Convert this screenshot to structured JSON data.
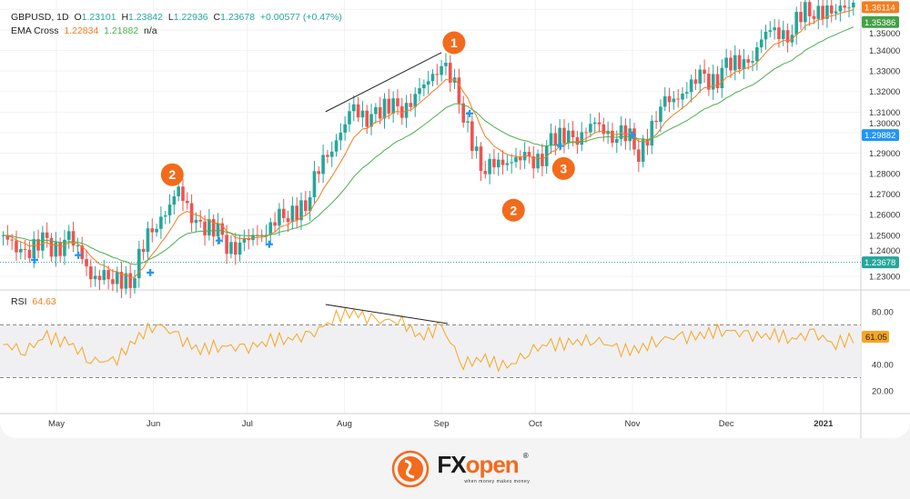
{
  "legend": {
    "symbol": "GBPUSD, 1D",
    "o_label": "O",
    "o": "1.23101",
    "h_label": "H",
    "h": "1.23842",
    "l_label": "L",
    "l": "1.22936",
    "c_label": "C",
    "c": "1.23678",
    "change": "+0.00577 (+0.47%)",
    "ema_label": "EMA Cross",
    "ema_fast": "1.22834",
    "ema_slow": "1.21882",
    "ema_na": "n/a",
    "rsi_label": "RSI",
    "rsi_value": "64.63"
  },
  "colors": {
    "up": "#26a69a",
    "down": "#ef5350",
    "ema_fast": "#f57c1f",
    "ema_slow": "#4caf50",
    "rsi": "#f5a623",
    "cross": "#2196f3",
    "marker": "#f26b1d"
  },
  "chart_data": [
    {
      "type": "candlestick",
      "title": "GBPUSD, 1D",
      "ylim": [
        1.2215,
        1.3645
      ],
      "y_ticks": [
        "1.23000",
        "1.24000",
        "1.25000",
        "1.26000",
        "1.27000",
        "1.28000",
        "1.29000",
        "1.30000",
        "1.31000",
        "1.32000",
        "1.33000",
        "1.34000",
        "1.35000"
      ],
      "x_ticks": [
        {
          "date": "2020-05-01",
          "label": "May"
        },
        {
          "date": "2020-06-01",
          "label": "Jun"
        },
        {
          "date": "2020-07-01",
          "label": "Jul"
        },
        {
          "date": "2020-08-01",
          "label": "Aug"
        },
        {
          "date": "2020-09-01",
          "label": "Sep"
        },
        {
          "date": "2020-10-01",
          "label": "Oct"
        },
        {
          "date": "2020-11-01",
          "label": "Nov"
        },
        {
          "date": "2020-12-01",
          "label": "Dec"
        },
        {
          "date": "2021-01-01",
          "label": "2021"
        }
      ],
      "weekly_close": {
        "dates": [
          "2020-04-14",
          "2020-04-21",
          "2020-04-28",
          "2020-05-05",
          "2020-05-12",
          "2020-05-19",
          "2020-05-26",
          "2020-06-02",
          "2020-06-09",
          "2020-06-16",
          "2020-06-23",
          "2020-06-30",
          "2020-07-07",
          "2020-07-14",
          "2020-07-21",
          "2020-07-28",
          "2020-08-04",
          "2020-08-11",
          "2020-08-18",
          "2020-08-25",
          "2020-09-01",
          "2020-09-08",
          "2020-09-15",
          "2020-09-22",
          "2020-09-29",
          "2020-10-06",
          "2020-10-13",
          "2020-10-20",
          "2020-10-27",
          "2020-11-03",
          "2020-11-10",
          "2020-11-17",
          "2020-11-24",
          "2020-12-01",
          "2020-12-08",
          "2020-12-15",
          "2020-12-22",
          "2020-12-29",
          "2021-01-05",
          "2021-01-12"
        ],
        "values": [
          1.247,
          1.242,
          1.245,
          1.247,
          1.232,
          1.228,
          1.232,
          1.258,
          1.27,
          1.254,
          1.248,
          1.244,
          1.254,
          1.26,
          1.27,
          1.295,
          1.31,
          1.308,
          1.312,
          1.318,
          1.336,
          1.31,
          1.28,
          1.288,
          1.285,
          1.294,
          1.298,
          1.303,
          1.3,
          1.292,
          1.312,
          1.32,
          1.326,
          1.33,
          1.335,
          1.35,
          1.35,
          1.362,
          1.358,
          1.367
        ]
      },
      "price_tags": [
        {
          "value": "1.36114",
          "color": "#f57c1f",
          "price": 1.36114
        },
        {
          "value": "1.35386",
          "color": "#43a047",
          "price": 1.35386
        },
        {
          "value": "1.29882",
          "color": "#2196f3",
          "price": 1.29882
        },
        {
          "value": "1.23678",
          "color": "#26a69a",
          "price": 1.23678
        }
      ],
      "trendline": [
        {
          "date": "2020-07-26",
          "price": 1.3102
        },
        {
          "date": "2020-09-01",
          "price": 1.339
        }
      ],
      "crosses": [
        {
          "date": "2020-04-24",
          "price": 1.238
        },
        {
          "date": "2020-05-08",
          "price": 1.2403
        },
        {
          "date": "2020-05-31",
          "price": 1.2318
        },
        {
          "date": "2020-06-22",
          "price": 1.2474
        },
        {
          "date": "2020-07-08",
          "price": 1.2456
        },
        {
          "date": "2020-09-10",
          "price": 1.3093
        },
        {
          "date": "2020-10-09",
          "price": 1.2935
        },
        {
          "date": "2020-11-01",
          "price": 1.2988
        }
      ],
      "markers": [
        {
          "label": "1",
          "date": "2020-09-05",
          "price": 1.3438
        },
        {
          "label": "2",
          "date": "2020-06-07",
          "price": 1.2795
        },
        {
          "label": "2",
          "date": "2020-09-24",
          "price": 1.2622
        },
        {
          "label": "3",
          "date": "2020-10-10",
          "price": 1.2825
        }
      ]
    },
    {
      "type": "line",
      "title": "RSI",
      "ylim": [
        10,
        95
      ],
      "y_ticks": [
        "80.00",
        "40.00",
        "20.00"
      ],
      "bands": [
        70,
        30
      ],
      "last_value": "61.05",
      "values": [
        55,
        51,
        61,
        56,
        44,
        41,
        58,
        72,
        60,
        51,
        55,
        51,
        58,
        60,
        61,
        75,
        80,
        72,
        75,
        61,
        68,
        41,
        44,
        37,
        51,
        55,
        56,
        60,
        51,
        51,
        60,
        60,
        63,
        67,
        61,
        63,
        60,
        63,
        56,
        61.05
      ],
      "trendline": [
        {
          "date": "2020-07-26",
          "value": 85.5
        },
        {
          "date": "2020-09-03",
          "value": 71
        }
      ]
    }
  ],
  "footer": {
    "brand_fx": "FX",
    "brand_open": "open",
    "tagline": "when money makes money",
    "reg": "®"
  }
}
